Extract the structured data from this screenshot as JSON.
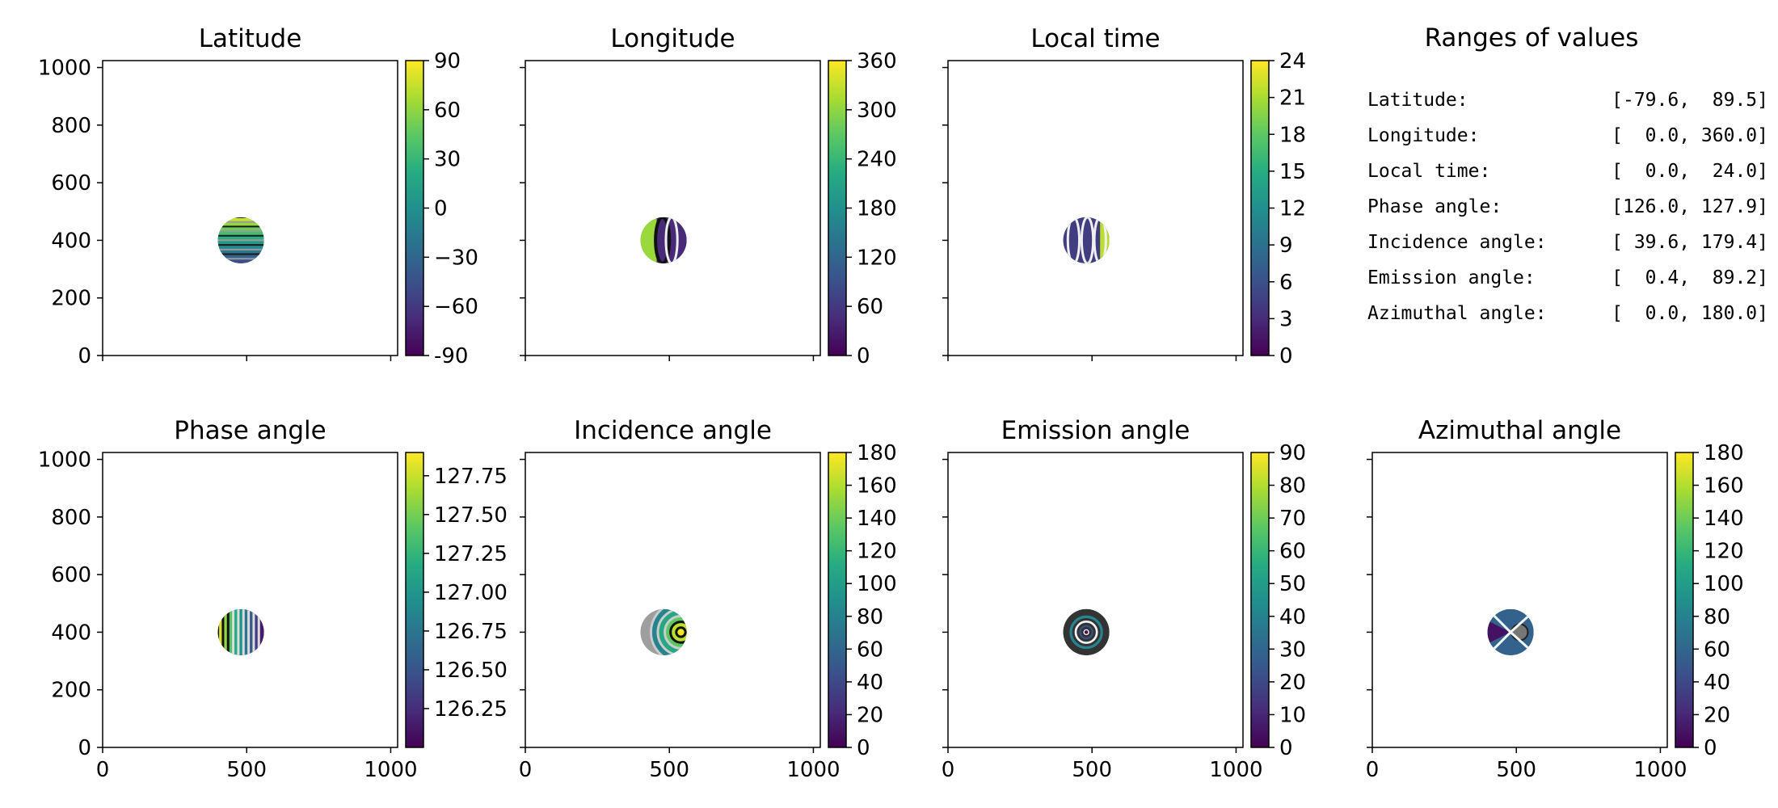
{
  "figure": {
    "ranges_title": "Ranges of values",
    "ranges": [
      {
        "label": "Latitude:",
        "value": "[-79.6,  89.5]"
      },
      {
        "label": "Longitude:",
        "value": "[  0.0, 360.0]"
      },
      {
        "label": "Local time:",
        "value": "[  0.0,  24.0]"
      },
      {
        "label": "Phase angle:",
        "value": "[126.0, 127.9]"
      },
      {
        "label": "Incidence angle:",
        "value": "[ 39.6, 179.4]"
      },
      {
        "label": "Emission angle:",
        "value": "[  0.4,  89.2]"
      },
      {
        "label": "Azimuthal angle:",
        "value": "[  0.0, 180.0]"
      }
    ],
    "colormap": "viridis",
    "colors": [
      "#440154",
      "#472c7a",
      "#3b518b",
      "#2c718e",
      "#21908d",
      "#27ad81",
      "#5cc863",
      "#aadc32",
      "#fde725"
    ]
  },
  "chart_data": [
    {
      "type": "heatmap",
      "title": "Latitude",
      "xlim": [
        0,
        1024
      ],
      "ylim": [
        0,
        1024
      ],
      "xticks": [
        0,
        500,
        1000
      ],
      "yticks": [
        0,
        200,
        400,
        600,
        800,
        1000
      ],
      "disk": {
        "cx": 480,
        "cy": 400,
        "r": 80
      },
      "pattern": "bands",
      "colorbar": {
        "min": -90,
        "max": 90,
        "ticks": [
          "-90",
          "−60",
          "−30",
          "0",
          "30",
          "60",
          "90"
        ],
        "values": [
          -90,
          -60,
          -30,
          0,
          30,
          60,
          90
        ]
      }
    },
    {
      "type": "heatmap",
      "title": "Longitude",
      "xlim": [
        0,
        1024
      ],
      "ylim": [
        0,
        1024
      ],
      "xticks": [
        0,
        500,
        1000
      ],
      "yticks": [
        0,
        200,
        400,
        600,
        800,
        1000
      ],
      "disk": {
        "cx": 480,
        "cy": 400,
        "r": 80
      },
      "pattern": "halves",
      "colorbar": {
        "min": 0,
        "max": 360,
        "ticks": [
          "0",
          "60",
          "120",
          "180",
          "240",
          "300",
          "360"
        ],
        "values": [
          0,
          60,
          120,
          180,
          240,
          300,
          360
        ]
      }
    },
    {
      "type": "heatmap",
      "title": "Local time",
      "xlim": [
        0,
        1024
      ],
      "ylim": [
        0,
        1024
      ],
      "xticks": [
        0,
        500,
        1000
      ],
      "yticks": [
        0,
        200,
        400,
        600,
        800,
        1000
      ],
      "disk": {
        "cx": 480,
        "cy": 400,
        "r": 80
      },
      "pattern": "meridians",
      "colorbar": {
        "min": 0,
        "max": 24,
        "ticks": [
          "0",
          "3",
          "6",
          "9",
          "12",
          "15",
          "18",
          "21",
          "24"
        ],
        "values": [
          0,
          3,
          6,
          9,
          12,
          15,
          18,
          21,
          24
        ]
      }
    },
    {
      "type": "heatmap",
      "title": "Phase angle",
      "xlim": [
        0,
        1024
      ],
      "ylim": [
        0,
        1024
      ],
      "xticks": [
        0,
        500,
        1000
      ],
      "yticks": [
        0,
        200,
        400,
        600,
        800,
        1000
      ],
      "disk": {
        "cx": 480,
        "cy": 400,
        "r": 80
      },
      "pattern": "vstripes",
      "colorbar": {
        "min": 126.0,
        "max": 127.9,
        "ticks": [
          "126.25",
          "126.50",
          "126.75",
          "127.00",
          "127.25",
          "127.50",
          "127.75"
        ],
        "values": [
          126.25,
          126.5,
          126.75,
          127.0,
          127.25,
          127.5,
          127.75
        ]
      }
    },
    {
      "type": "heatmap",
      "title": "Incidence angle",
      "xlim": [
        0,
        1024
      ],
      "ylim": [
        0,
        1024
      ],
      "xticks": [
        0,
        500,
        1000
      ],
      "yticks": [
        0,
        200,
        400,
        600,
        800,
        1000
      ],
      "disk": {
        "cx": 480,
        "cy": 400,
        "r": 80
      },
      "pattern": "arcs",
      "colorbar": {
        "min": 0,
        "max": 180,
        "ticks": [
          "0",
          "20",
          "40",
          "60",
          "80",
          "100",
          "120",
          "140",
          "160",
          "180"
        ],
        "values": [
          0,
          20,
          40,
          60,
          80,
          100,
          120,
          140,
          160,
          180
        ]
      }
    },
    {
      "type": "heatmap",
      "title": "Emission angle",
      "xlim": [
        0,
        1024
      ],
      "ylim": [
        0,
        1024
      ],
      "xticks": [
        0,
        500,
        1000
      ],
      "yticks": [
        0,
        200,
        400,
        600,
        800,
        1000
      ],
      "disk": {
        "cx": 480,
        "cy": 400,
        "r": 80
      },
      "pattern": "rings",
      "colorbar": {
        "min": 0,
        "max": 90,
        "ticks": [
          "0",
          "10",
          "20",
          "30",
          "40",
          "50",
          "60",
          "70",
          "80",
          "90"
        ],
        "values": [
          0,
          10,
          20,
          30,
          40,
          50,
          60,
          70,
          80,
          90
        ]
      }
    },
    {
      "type": "heatmap",
      "title": "Azimuthal angle",
      "xlim": [
        0,
        1024
      ],
      "ylim": [
        0,
        1024
      ],
      "xticks": [
        0,
        500,
        1000
      ],
      "yticks": [
        0,
        200,
        400,
        600,
        800,
        1000
      ],
      "disk": {
        "cx": 480,
        "cy": 400,
        "r": 80
      },
      "pattern": "sectors",
      "colorbar": {
        "min": 0,
        "max": 180,
        "ticks": [
          "0",
          "20",
          "40",
          "60",
          "80",
          "100",
          "120",
          "140",
          "160",
          "180"
        ],
        "values": [
          0,
          20,
          40,
          60,
          80,
          100,
          120,
          140,
          160,
          180
        ]
      }
    }
  ]
}
